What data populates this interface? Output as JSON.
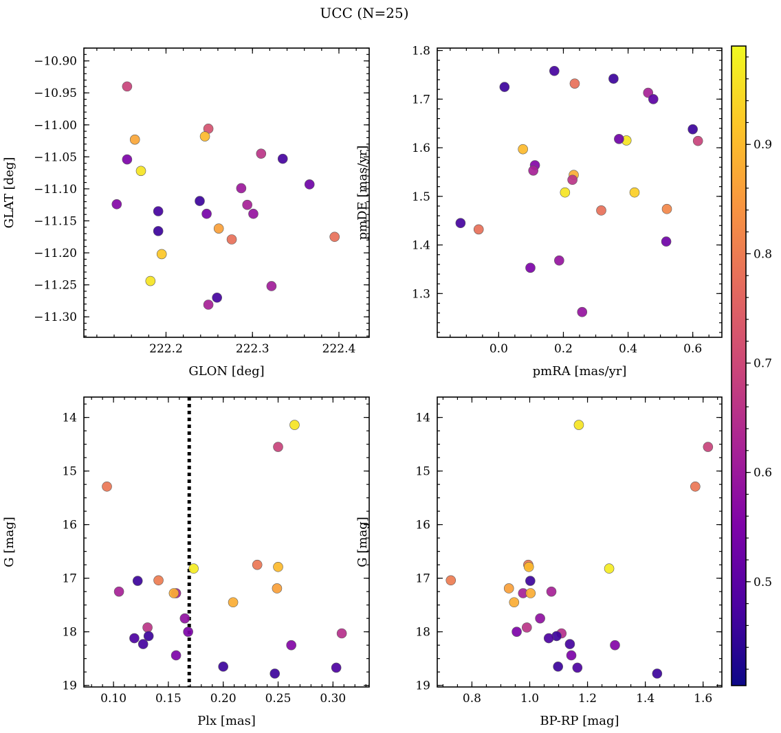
{
  "chart_data": {
    "title": "UCC (N=25)",
    "type": "scatter",
    "colorbar": {
      "colormap": "plasma",
      "range": [
        0.405,
        0.99
      ],
      "ticks": [
        0.5,
        0.6,
        0.7,
        0.8,
        0.9
      ],
      "tick_labels": [
        "0.5",
        "0.6",
        "0.7",
        "0.8",
        "0.9"
      ]
    },
    "panels": [
      {
        "id": "glon-glat",
        "xlabel": "GLON [deg]",
        "ylabel": "GLAT [deg]",
        "xlim": [
          222.105,
          222.435
        ],
        "ylim": [
          -11.332,
          -10.88
        ],
        "y_inverted": false,
        "xticks": [
          222.2,
          222.3,
          222.4
        ],
        "xtick_labels": [
          "222.2",
          "222.3",
          "222.4"
        ],
        "xminor": 0.02,
        "yticks": [
          -10.9,
          -10.95,
          -11.0,
          -11.05,
          -11.1,
          -11.15,
          -11.2,
          -11.25,
          -11.3
        ],
        "ytick_labels": [
          "−10.90",
          "−10.95",
          "−11.00",
          "−11.05",
          "−11.10",
          "−11.15",
          "−11.20",
          "−11.25",
          "−11.30"
        ],
        "yminor": 0.01,
        "x": [
          222.155,
          222.249,
          222.164,
          222.245,
          222.171,
          222.155,
          222.31,
          222.335,
          222.366,
          222.287,
          222.143,
          222.239,
          222.294,
          222.191,
          222.247,
          222.301,
          222.191,
          222.261,
          222.276,
          222.395,
          222.195,
          222.182,
          222.322,
          222.259,
          222.249
        ],
        "y": [
          -10.94,
          -11.006,
          -11.023,
          -11.018,
          -11.072,
          -11.054,
          -11.045,
          -11.053,
          -11.093,
          -11.099,
          -11.124,
          -11.119,
          -11.125,
          -11.135,
          -11.139,
          -11.139,
          -11.166,
          -11.162,
          -11.179,
          -11.175,
          -11.202,
          -11.244,
          -11.252,
          -11.27,
          -11.281
        ],
        "c": [
          0.69,
          0.72,
          0.87,
          0.9,
          0.96,
          0.55,
          0.66,
          0.47,
          0.53,
          0.6,
          0.56,
          0.46,
          0.62,
          0.47,
          0.54,
          0.59,
          0.46,
          0.86,
          0.78,
          0.78,
          0.92,
          0.96,
          0.61,
          0.47,
          0.62
        ]
      },
      {
        "id": "pmra-pmde",
        "xlabel": "pmRA [mas/yr]",
        "ylabel": "pmDE [mas/yr]",
        "xlim": [
          -0.19,
          0.69
        ],
        "ylim": [
          1.21,
          1.805
        ],
        "y_inverted": false,
        "xticks": [
          0.0,
          0.2,
          0.4,
          0.6
        ],
        "xtick_labels": [
          "0.0",
          "0.2",
          "0.4",
          "0.6"
        ],
        "xminor": 0.05,
        "yticks": [
          1.3,
          1.4,
          1.5,
          1.6,
          1.7,
          1.8
        ],
        "ytick_labels": [
          "1.3",
          "1.4",
          "1.5",
          "1.6",
          "1.7",
          "1.8"
        ],
        "yminor": 0.02,
        "x": [
          0.172,
          0.018,
          0.235,
          0.355,
          0.462,
          0.478,
          0.6,
          0.616,
          0.075,
          0.395,
          0.372,
          0.112,
          0.107,
          0.232,
          0.228,
          0.205,
          0.42,
          0.52,
          0.317,
          -0.118,
          -0.062,
          0.518,
          0.187,
          0.098,
          0.258
        ],
        "y": [
          1.758,
          1.725,
          1.732,
          1.742,
          1.713,
          1.7,
          1.638,
          1.614,
          1.597,
          1.615,
          1.618,
          1.564,
          1.553,
          1.544,
          1.534,
          1.508,
          1.508,
          1.474,
          1.471,
          1.445,
          1.432,
          1.407,
          1.368,
          1.353,
          1.262
        ],
        "c": [
          0.47,
          0.46,
          0.78,
          0.46,
          0.62,
          0.5,
          0.46,
          0.69,
          0.9,
          0.96,
          0.53,
          0.56,
          0.62,
          0.88,
          0.66,
          0.96,
          0.93,
          0.82,
          0.78,
          0.47,
          0.78,
          0.53,
          0.59,
          0.55,
          0.59
        ]
      },
      {
        "id": "plx-g",
        "xlabel": "Plx [mas]",
        "ylabel": "G [mag]",
        "xlim": [
          0.073,
          0.333
        ],
        "ylim": [
          13.62,
          19.03
        ],
        "y_inverted": true,
        "xticks": [
          0.1,
          0.15,
          0.2,
          0.25,
          0.3
        ],
        "xtick_labels": [
          "0.10",
          "0.15",
          "0.20",
          "0.25",
          "0.30"
        ],
        "xminor": 0.01,
        "yticks": [
          14,
          15,
          16,
          17,
          18,
          19
        ],
        "ytick_labels": [
          "14",
          "15",
          "16",
          "17",
          "18",
          "19"
        ],
        "yminor": 0.25,
        "vline": 0.169,
        "x": [
          0.265,
          0.25,
          0.094,
          0.173,
          0.231,
          0.25,
          0.122,
          0.141,
          0.105,
          0.157,
          0.155,
          0.249,
          0.209,
          0.165,
          0.131,
          0.168,
          0.308,
          0.132,
          0.119,
          0.127,
          0.262,
          0.157,
          0.2,
          0.303,
          0.247
        ],
        "y": [
          14.14,
          14.55,
          15.29,
          16.82,
          16.75,
          16.79,
          17.05,
          17.04,
          17.25,
          17.28,
          17.28,
          17.19,
          17.45,
          17.75,
          17.92,
          18.0,
          18.03,
          18.08,
          18.12,
          18.23,
          18.25,
          18.44,
          18.65,
          18.67,
          18.78
        ],
        "c": [
          0.96,
          0.69,
          0.79,
          0.97,
          0.79,
          0.9,
          0.46,
          0.8,
          0.62,
          0.62,
          0.88,
          0.86,
          0.88,
          0.58,
          0.66,
          0.55,
          0.65,
          0.46,
          0.48,
          0.47,
          0.56,
          0.55,
          0.46,
          0.48,
          0.46
        ]
      },
      {
        "id": "bprp-g",
        "xlabel": "BP-RP [mag]",
        "ylabel": "G [mag]",
        "xlim": [
          0.68,
          1.665
        ],
        "ylim": [
          13.62,
          19.03
        ],
        "y_inverted": true,
        "xticks": [
          0.8,
          1.0,
          1.2,
          1.4,
          1.6
        ],
        "xtick_labels": [
          "0.8",
          "1.0",
          "1.2",
          "1.4",
          "1.6"
        ],
        "xminor": 0.05,
        "yticks": [
          14,
          15,
          16,
          17,
          18,
          19
        ],
        "ytick_labels": [
          "14",
          "15",
          "16",
          "17",
          "18",
          "19"
        ],
        "yminor": 0.25,
        "x": [
          1.17,
          1.617,
          1.573,
          1.275,
          0.995,
          0.997,
          0.727,
          1.002,
          0.928,
          1.075,
          0.977,
          1.003,
          0.946,
          1.036,
          0.99,
          0.955,
          1.11,
          1.093,
          1.066,
          1.139,
          1.295,
          1.144,
          1.098,
          1.165,
          1.441
        ],
        "y": [
          14.14,
          14.55,
          15.29,
          16.82,
          16.75,
          16.79,
          17.04,
          17.05,
          17.19,
          17.25,
          17.28,
          17.28,
          17.45,
          17.75,
          17.92,
          18.0,
          18.03,
          18.08,
          18.12,
          18.23,
          18.25,
          18.44,
          18.65,
          18.67,
          18.78
        ],
        "c": [
          0.96,
          0.69,
          0.79,
          0.97,
          0.79,
          0.9,
          0.8,
          0.46,
          0.86,
          0.62,
          0.62,
          0.88,
          0.88,
          0.58,
          0.66,
          0.55,
          0.65,
          0.46,
          0.48,
          0.47,
          0.56,
          0.55,
          0.46,
          0.48,
          0.46
        ]
      }
    ]
  }
}
